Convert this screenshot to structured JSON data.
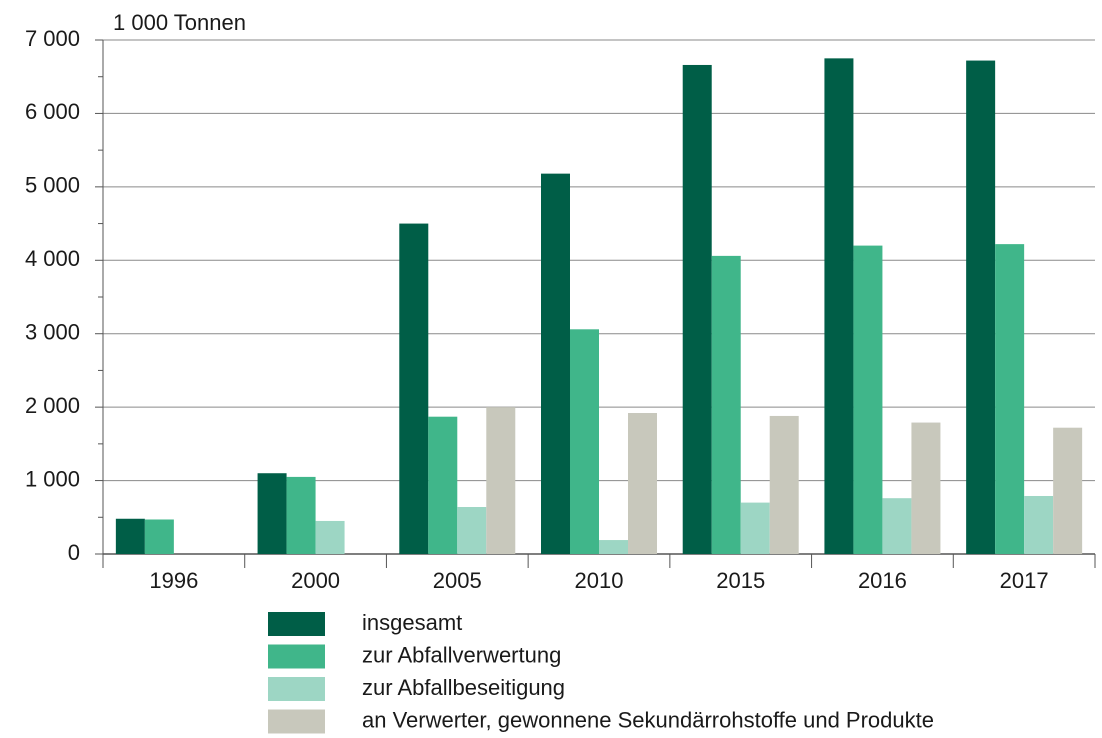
{
  "chart_data": {
    "type": "bar",
    "y_label": "1 000 Tonnen",
    "categories": [
      "1996",
      "2000",
      "2005",
      "2010",
      "2015",
      "2016",
      "2017"
    ],
    "series": [
      {
        "name": "insgesamt",
        "color": "#005e47",
        "values": [
          480,
          1100,
          4500,
          5180,
          6660,
          6750,
          6720
        ]
      },
      {
        "name": "zur Abfallverwertung",
        "color": "#40b68a",
        "values": [
          470,
          1050,
          1870,
          3060,
          4060,
          4200,
          4220
        ]
      },
      {
        "name": "zur Abfallbeseitigung",
        "color": "#9dd6c4",
        "values": [
          null,
          450,
          640,
          190,
          700,
          760,
          790
        ]
      },
      {
        "name": "an Verwerter, gewonnene Sekundärrohstoffe und Produkte",
        "color": "#c8c8bc",
        "values": [
          null,
          null,
          2000,
          1920,
          1880,
          1790,
          1720
        ]
      }
    ],
    "ylim": [
      0,
      7000
    ],
    "yticks": [
      0,
      {
        "value": 1000,
        "label": "1 000"
      },
      {
        "value": 2000,
        "label": "2 000"
      },
      {
        "value": 3000,
        "label": "3 000"
      },
      {
        "value": 4000,
        "label": "4 000"
      },
      {
        "value": 5000,
        "label": "5 000"
      },
      {
        "value": 6000,
        "label": "6 000"
      },
      {
        "value": 7000,
        "label": "7 000"
      }
    ],
    "grid": true
  }
}
